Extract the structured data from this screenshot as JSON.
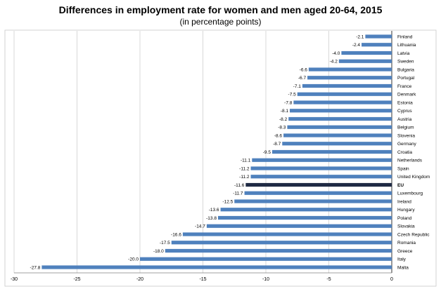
{
  "chart_data": {
    "type": "bar",
    "orientation": "horizontal",
    "title": "Differences in employment rate for women and men aged 20-64, 2015",
    "subtitle": "(in percentage points)",
    "xlabel": "",
    "ylabel": "",
    "xlim": [
      -30,
      0
    ],
    "xticks": [
      -30,
      -25,
      -20,
      -15,
      -10,
      -5,
      0
    ],
    "grid": true,
    "legend": "none",
    "colors": {
      "bar": "#4f81bd",
      "highlight": "#1f2a44",
      "grid": "#c8c8c8"
    },
    "highlight_category": "EU",
    "categories": [
      "Finland",
      "Lithuania",
      "Latvia",
      "Sweden",
      "Bulgaria",
      "Portugal",
      "France",
      "Denmark",
      "Estonia",
      "Cyprus",
      "Austria",
      "Belgium",
      "Slovenia",
      "Germany",
      "Croatia",
      "Netherlands",
      "Spain",
      "United Kingdom",
      "EU",
      "Luxembourg",
      "Ireland",
      "Hungary",
      "Poland",
      "Slovakia",
      "Czech Republic",
      "Romania",
      "Greece",
      "Italy",
      "Malta"
    ],
    "values": [
      -2.1,
      -2.4,
      -4.0,
      -4.2,
      -6.6,
      -6.7,
      -7.1,
      -7.5,
      -7.8,
      -8.1,
      -8.2,
      -8.3,
      -8.6,
      -8.7,
      -9.5,
      -11.1,
      -11.2,
      -11.2,
      -11.6,
      -11.7,
      -12.5,
      -13.6,
      -13.8,
      -14.7,
      -16.6,
      -17.5,
      -18.0,
      -20.0,
      -27.8
    ],
    "value_labels": [
      "-2.1",
      "-2.4",
      "-4.0",
      "-4.2",
      "-6.6",
      "-6.7",
      "-7.1",
      "-7.5",
      "-7.8",
      "-8.1",
      "-8.2",
      "-8.3",
      "-8.6",
      "-8.7",
      "-9.5",
      "-11.1",
      "-11.2",
      "-11.2",
      "-11.6",
      "-11.7",
      "-12.5",
      "-13.6",
      "-13.8",
      "-14.7",
      "-16.6",
      "-17.5",
      "-18.0",
      "-20.0",
      "-27.8"
    ]
  }
}
